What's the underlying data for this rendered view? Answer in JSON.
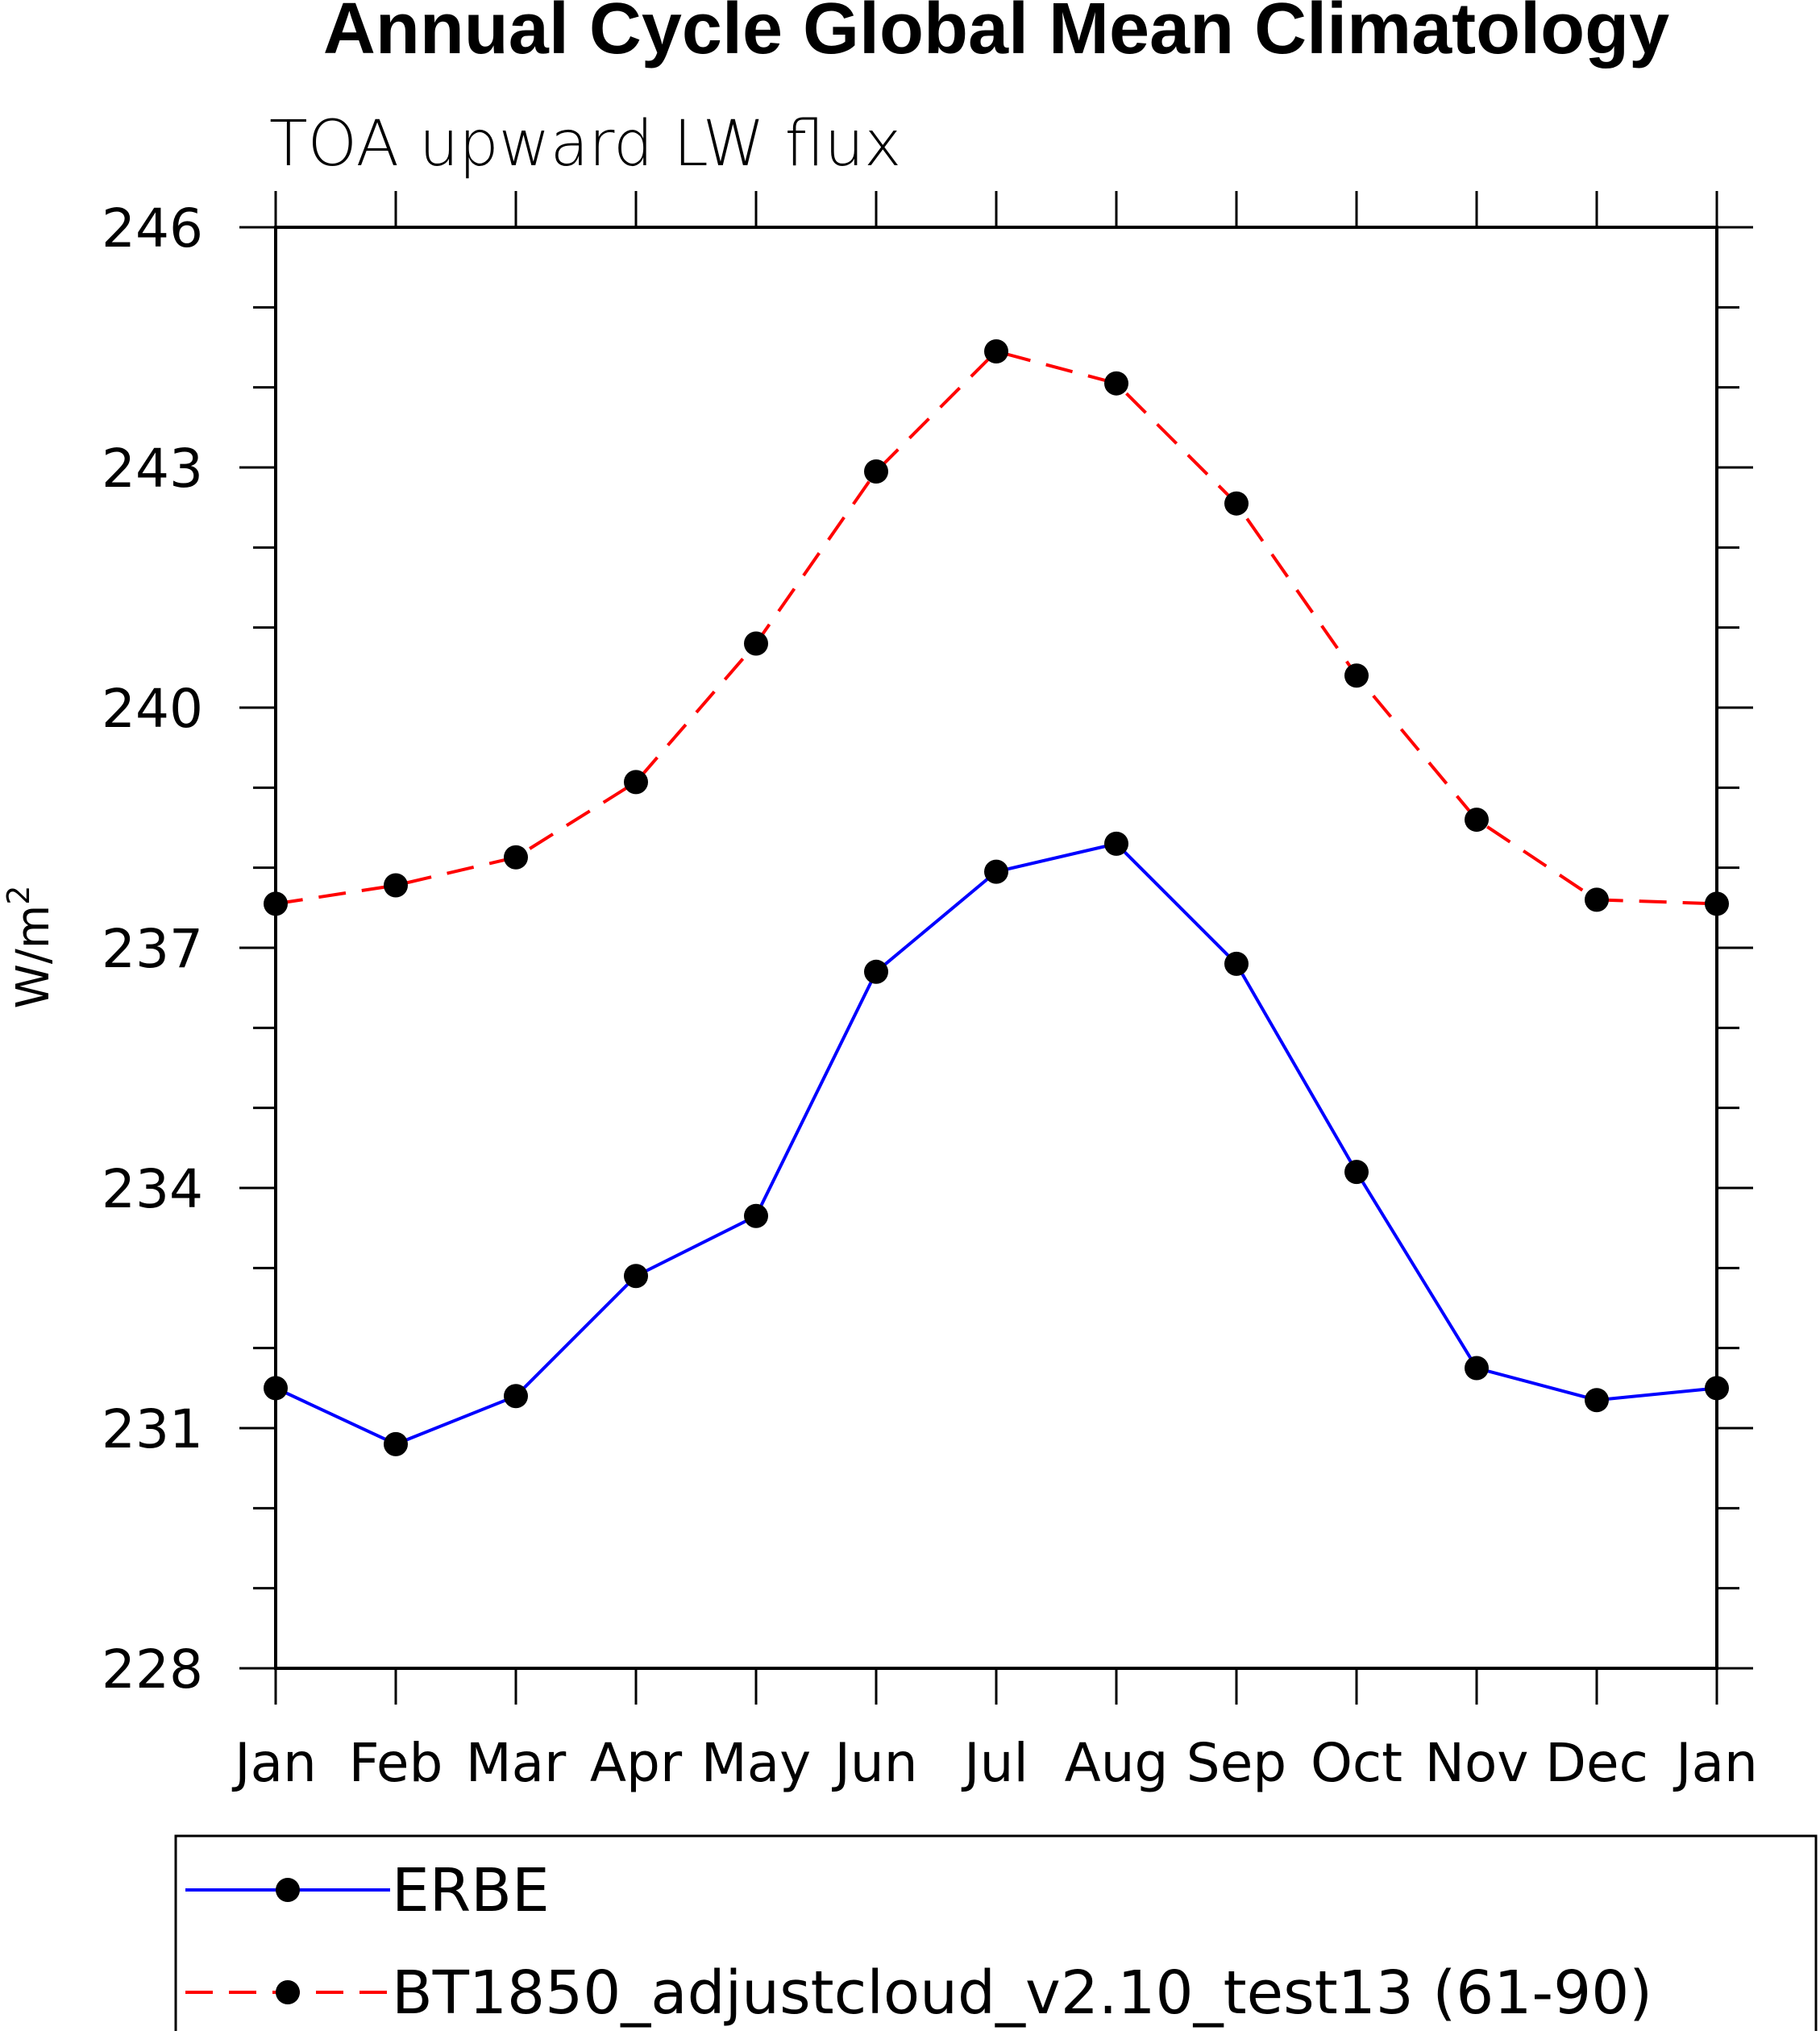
{
  "chart_data": {
    "type": "line",
    "title": "Annual Cycle Global Mean Climatology",
    "subtitle": "TOA upward LW flux",
    "xlabel": "",
    "ylabel": "W/m",
    "ylabel_superscript": "2",
    "categories": [
      "Jan",
      "Feb",
      "Mar",
      "Apr",
      "May",
      "Jun",
      "Jul",
      "Aug",
      "Sep",
      "Oct",
      "Nov",
      "Dec",
      "Jan"
    ],
    "ylim": [
      228,
      246
    ],
    "y_major_ticks": [
      228,
      231,
      234,
      237,
      240,
      243,
      246
    ],
    "y_tick_labels": [
      "228",
      "231",
      "234",
      "237",
      "240",
      "243",
      "246"
    ],
    "y_minor_step": 1,
    "grid": false,
    "legend_position": "bottom",
    "series": [
      {
        "name": "ERBE",
        "color": "#0000ff",
        "line_style": "solid",
        "marker": "filled-circle",
        "values": [
          231.5,
          230.8,
          231.4,
          232.9,
          233.65,
          236.7,
          237.95,
          238.3,
          236.8,
          234.2,
          231.75,
          231.35,
          231.5
        ]
      },
      {
        "name": "BT1850_adjustcloud_v2.10_test13 (61-90)",
        "color": "#ff0000",
        "line_style": "dashed",
        "marker": "filled-circle",
        "values": [
          237.55,
          237.78,
          238.13,
          239.07,
          240.8,
          242.95,
          244.45,
          244.05,
          242.55,
          240.4,
          238.6,
          237.6,
          237.55
        ]
      }
    ]
  }
}
